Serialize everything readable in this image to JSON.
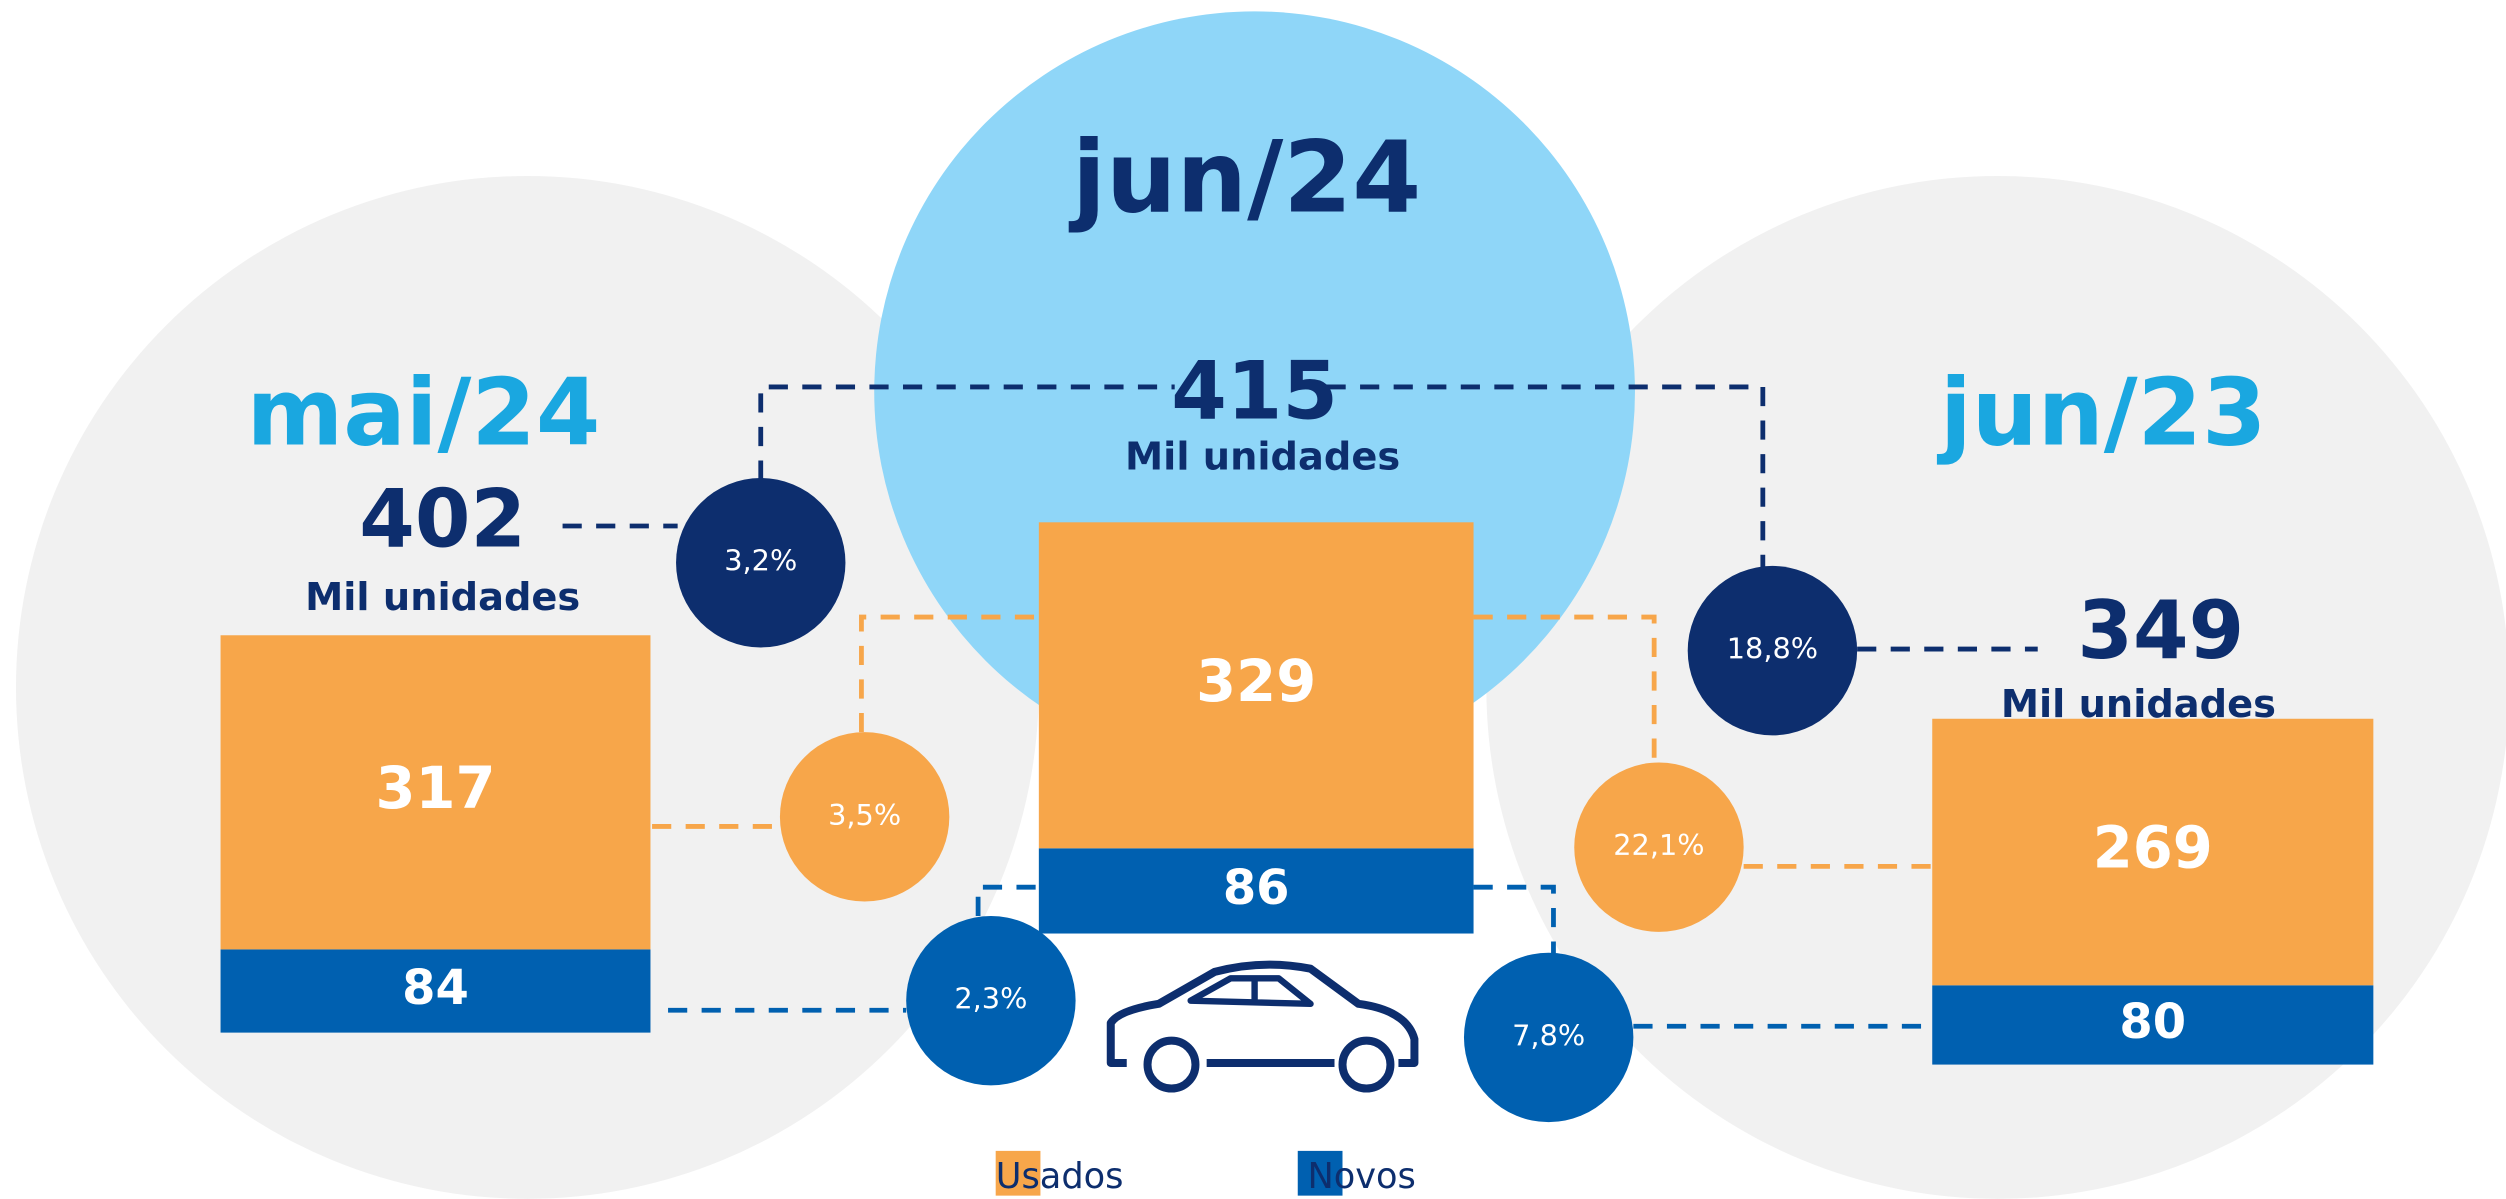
{
  "chart_data": {
    "type": "stacked_bar",
    "categories": [
      "mai/24",
      "jun/24",
      "jun/23"
    ],
    "series": [
      {
        "name": "Usados",
        "color": "#f7a64a",
        "values": [
          317,
          329,
          269
        ]
      },
      {
        "name": "Novos",
        "color": "#0060b0",
        "values": [
          84,
          86,
          80
        ]
      }
    ],
    "totals": [
      402,
      415,
      349
    ],
    "unit_label": "Mil unidades",
    "changes": [
      {
        "values": [
          3.2,
          3.5,
          2.3
        ],
        "value_labels": [
          "3,2%",
          "3,5%",
          "2,3%"
        ]
      },
      {
        "values": [
          18.8,
          22.1,
          7.8
        ],
        "value_labels": [
          "18,8%",
          "22,1%",
          "7,8%"
        ]
      }
    ]
  }
}
